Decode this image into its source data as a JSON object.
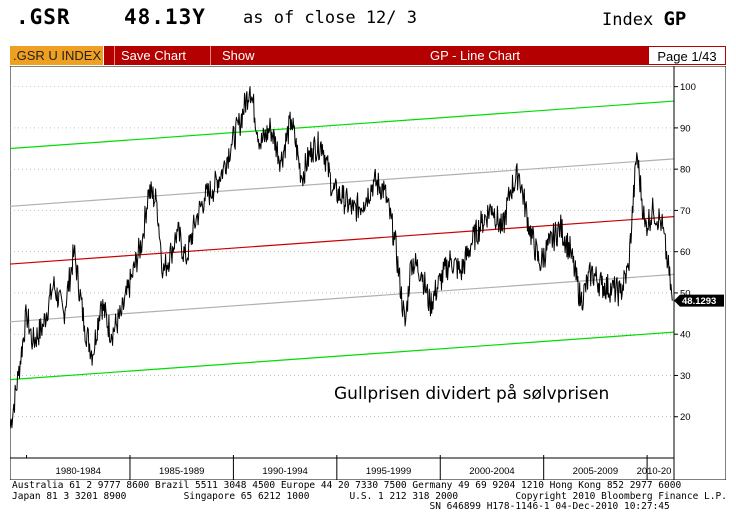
{
  "header": {
    "ticker": ".GSR",
    "price": "48.13Y",
    "as_of": "as of close 12/ 3",
    "index_label": "Index",
    "index_code": "GP"
  },
  "toolbar": {
    "security": ".GSR U INDEX",
    "save": "Save Chart",
    "show": "Show",
    "title": "GP - Line Chart",
    "page": "Page 1/43"
  },
  "chart_data": {
    "type": "line",
    "title": "Gullprisen dividert på sølvprisen",
    "x_tick_labels": [
      "1980-1984",
      "1985-1989",
      "1990-1994",
      "1995-1999",
      "2000-2004",
      "2005-2009",
      "2010-20"
    ],
    "y_ticks": [
      20,
      30,
      40,
      50,
      60,
      70,
      80,
      90,
      100
    ],
    "ylim": [
      10,
      105
    ],
    "xlim": [
      1978.9,
      2011.0
    ],
    "last_value_label": "48.1293",
    "last_value": 48.13,
    "grid": "horizontal dotted",
    "series": [
      {
        "x": [
          1978.9,
          1979.3,
          1979.7,
          1980.0,
          1980.5,
          1981.0,
          1981.5,
          1982.0,
          1982.5,
          1982.9,
          1983.3,
          1983.8,
          1984.3,
          1984.8,
          1985.3,
          1985.6,
          1986.0,
          1986.3,
          1986.7,
          1987.0,
          1987.4,
          1987.9,
          1988.3,
          1988.7,
          1989.2,
          1989.6,
          1990.0,
          1990.5,
          1991.0,
          1991.5,
          1992.0,
          1992.5,
          1993.0,
          1993.5,
          1994.0,
          1994.5,
          1995.0,
          1995.5,
          1996.0,
          1996.5,
          1997.0,
          1997.5,
          1998.0,
          1998.3,
          1998.8,
          1999.2,
          1999.7,
          2000.2,
          2000.7,
          2001.2,
          2001.7,
          2002.2,
          2002.7,
          2003.1,
          2003.5,
          2004.0,
          2004.5,
          2005.0,
          2005.5,
          2006.0,
          2006.5,
          2007.0,
          2007.5,
          2008.0,
          2008.4,
          2008.8,
          2009.2,
          2009.6,
          2010.0,
          2010.4,
          2010.7,
          2010.92
        ],
        "values": [
          17,
          30,
          45,
          38,
          42,
          52,
          45,
          60,
          42,
          35,
          48,
          40,
          45,
          54,
          63,
          75,
          72,
          55,
          60,
          65,
          58,
          68,
          73,
          75,
          80,
          86,
          91,
          100,
          86,
          90,
          82,
          92,
          78,
          85,
          86,
          75,
          73,
          70,
          72,
          77,
          75,
          63,
          42,
          58,
          55,
          47,
          53,
          58,
          55,
          62,
          67,
          71,
          65,
          75,
          79,
          66,
          57,
          62,
          66,
          60,
          48,
          55,
          52,
          51,
          50,
          56,
          84,
          66,
          70,
          67,
          57,
          48.13
        ]
      }
    ],
    "trend_lines": [
      {
        "color": "#00dd00",
        "x": [
          1978.9,
          2011.0
        ],
        "values": [
          85,
          96.5
        ]
      },
      {
        "color": "#b0b0b0",
        "x": [
          1978.9,
          2011.0
        ],
        "values": [
          71,
          82.5
        ]
      },
      {
        "color": "#cc0000",
        "x": [
          1978.9,
          2011.0
        ],
        "values": [
          57,
          68.5
        ]
      },
      {
        "color": "#b0b0b0",
        "x": [
          1978.9,
          2011.0
        ],
        "values": [
          43,
          54.5
        ]
      },
      {
        "color": "#00dd00",
        "x": [
          1978.9,
          2011.0
        ],
        "values": [
          29,
          40.5
        ]
      }
    ]
  },
  "footer": {
    "line1": "Australia 61 2 9777 8600 Brazil 5511 3048 4500 Europe 44 20 7330 7500 Germany 49 69 9204 1210 Hong Kong 852 2977 6000",
    "line2": "Japan 81 3 3201 8900          Singapore 65 6212 1000       U.S. 1 212 318 2000          Copyright 2010 Bloomberg Finance L.P.",
    "line3": "                                                                         SN 646899 H178-1146-1 04-Dec-2010 10:27:45"
  }
}
